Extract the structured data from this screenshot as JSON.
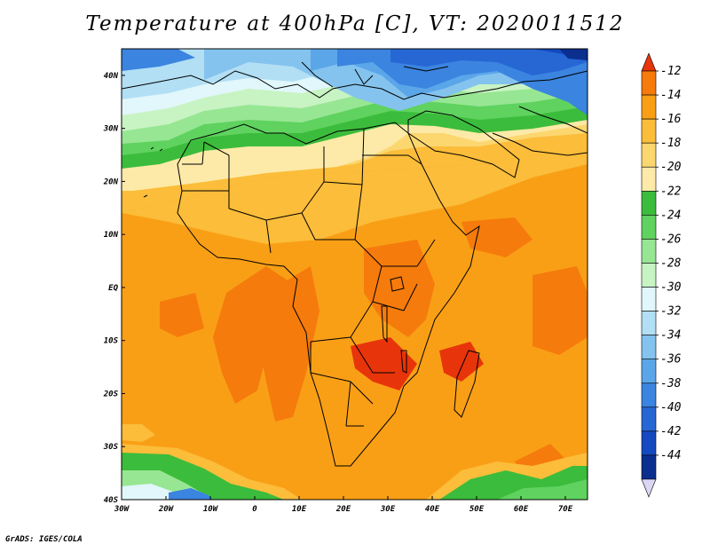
{
  "title": "Temperature at 400hPa [C], VT: 2020011512",
  "credit": "GrADS: IGES/COLA",
  "map": {
    "lon_range": [
      -30,
      75
    ],
    "lat_range": [
      -40,
      45
    ],
    "lon_ticks": [
      {
        "value": -30,
        "label": "30W"
      },
      {
        "value": -20,
        "label": "20W"
      },
      {
        "value": -10,
        "label": "10W"
      },
      {
        "value": 0,
        "label": "0"
      },
      {
        "value": 10,
        "label": "10E"
      },
      {
        "value": 20,
        "label": "20E"
      },
      {
        "value": 30,
        "label": "30E"
      },
      {
        "value": 40,
        "label": "40E"
      },
      {
        "value": 50,
        "label": "50E"
      },
      {
        "value": 60,
        "label": "60E"
      },
      {
        "value": 70,
        "label": "70E"
      }
    ],
    "lat_ticks": [
      {
        "value": 40,
        "label": "40N"
      },
      {
        "value": 30,
        "label": "30N"
      },
      {
        "value": 20,
        "label": "20N"
      },
      {
        "value": 10,
        "label": "10N"
      },
      {
        "value": 0,
        "label": "EQ"
      },
      {
        "value": -10,
        "label": "10S"
      },
      {
        "value": -20,
        "label": "20S"
      },
      {
        "value": -30,
        "label": "30S"
      },
      {
        "value": -40,
        "label": "40S"
      }
    ]
  },
  "colorbar": {
    "labels": [
      "-12",
      "-14",
      "-16",
      "-18",
      "-20",
      "-22",
      "-24",
      "-26",
      "-28",
      "-30",
      "-32",
      "-34",
      "-36",
      "-38",
      "-40",
      "-42",
      "-44"
    ],
    "colors": [
      "#e8340a",
      "#f57b0c",
      "#f99f16",
      "#fbbd3a",
      "#fcd770",
      "#fdeaa8",
      "#3cbc3c",
      "#5fd25f",
      "#97e693",
      "#c8f3c3",
      "#e1f7fb",
      "#b2dff4",
      "#84c3ee",
      "#5ba6e9",
      "#3b84e0",
      "#2667d4",
      "#1449c0",
      "#0b2f8f",
      "#dcd6f5"
    ]
  }
}
